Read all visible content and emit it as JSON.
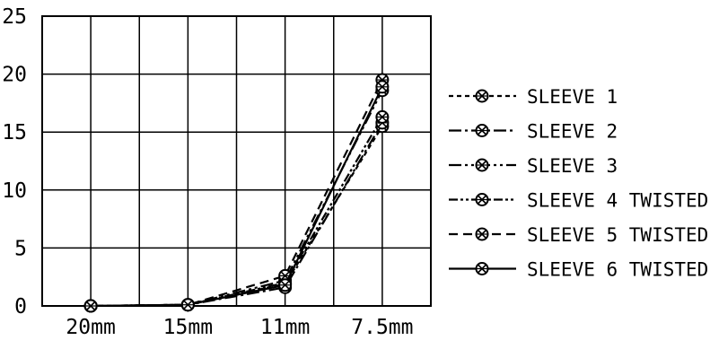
{
  "chart_data": {
    "type": "line",
    "categories": [
      "20mm",
      "15mm",
      "11mm",
      "7.5mm"
    ],
    "y_ticks": [
      "0",
      "5",
      "10",
      "15",
      "20",
      "25"
    ],
    "ylim": [
      0,
      25
    ],
    "grid": true,
    "legend_position": "right",
    "series": [
      {
        "name": "SLEEVE 1",
        "values": [
          0,
          0.1,
          1.9,
          15.5
        ],
        "dash": "5,4"
      },
      {
        "name": "SLEEVE 2",
        "values": [
          0,
          0.1,
          1.6,
          15.8
        ],
        "dash": "14,4,3,4"
      },
      {
        "name": "SLEEVE 3",
        "values": [
          0,
          0.1,
          2.2,
          18.6
        ],
        "dash": "14,4,3,4,3,4"
      },
      {
        "name": "SLEEVE 4 TWISTED",
        "values": [
          0,
          0.1,
          2.0,
          16.3
        ],
        "dash": "10,3,3,3,3,3"
      },
      {
        "name": "SLEEVE 5 TWISTED",
        "values": [
          0,
          0.1,
          2.6,
          19.5
        ],
        "dash": "10,6"
      },
      {
        "name": "SLEEVE 6 TWISTED",
        "values": [
          0,
          0.1,
          1.8,
          18.9
        ],
        "dash": ""
      }
    ]
  }
}
